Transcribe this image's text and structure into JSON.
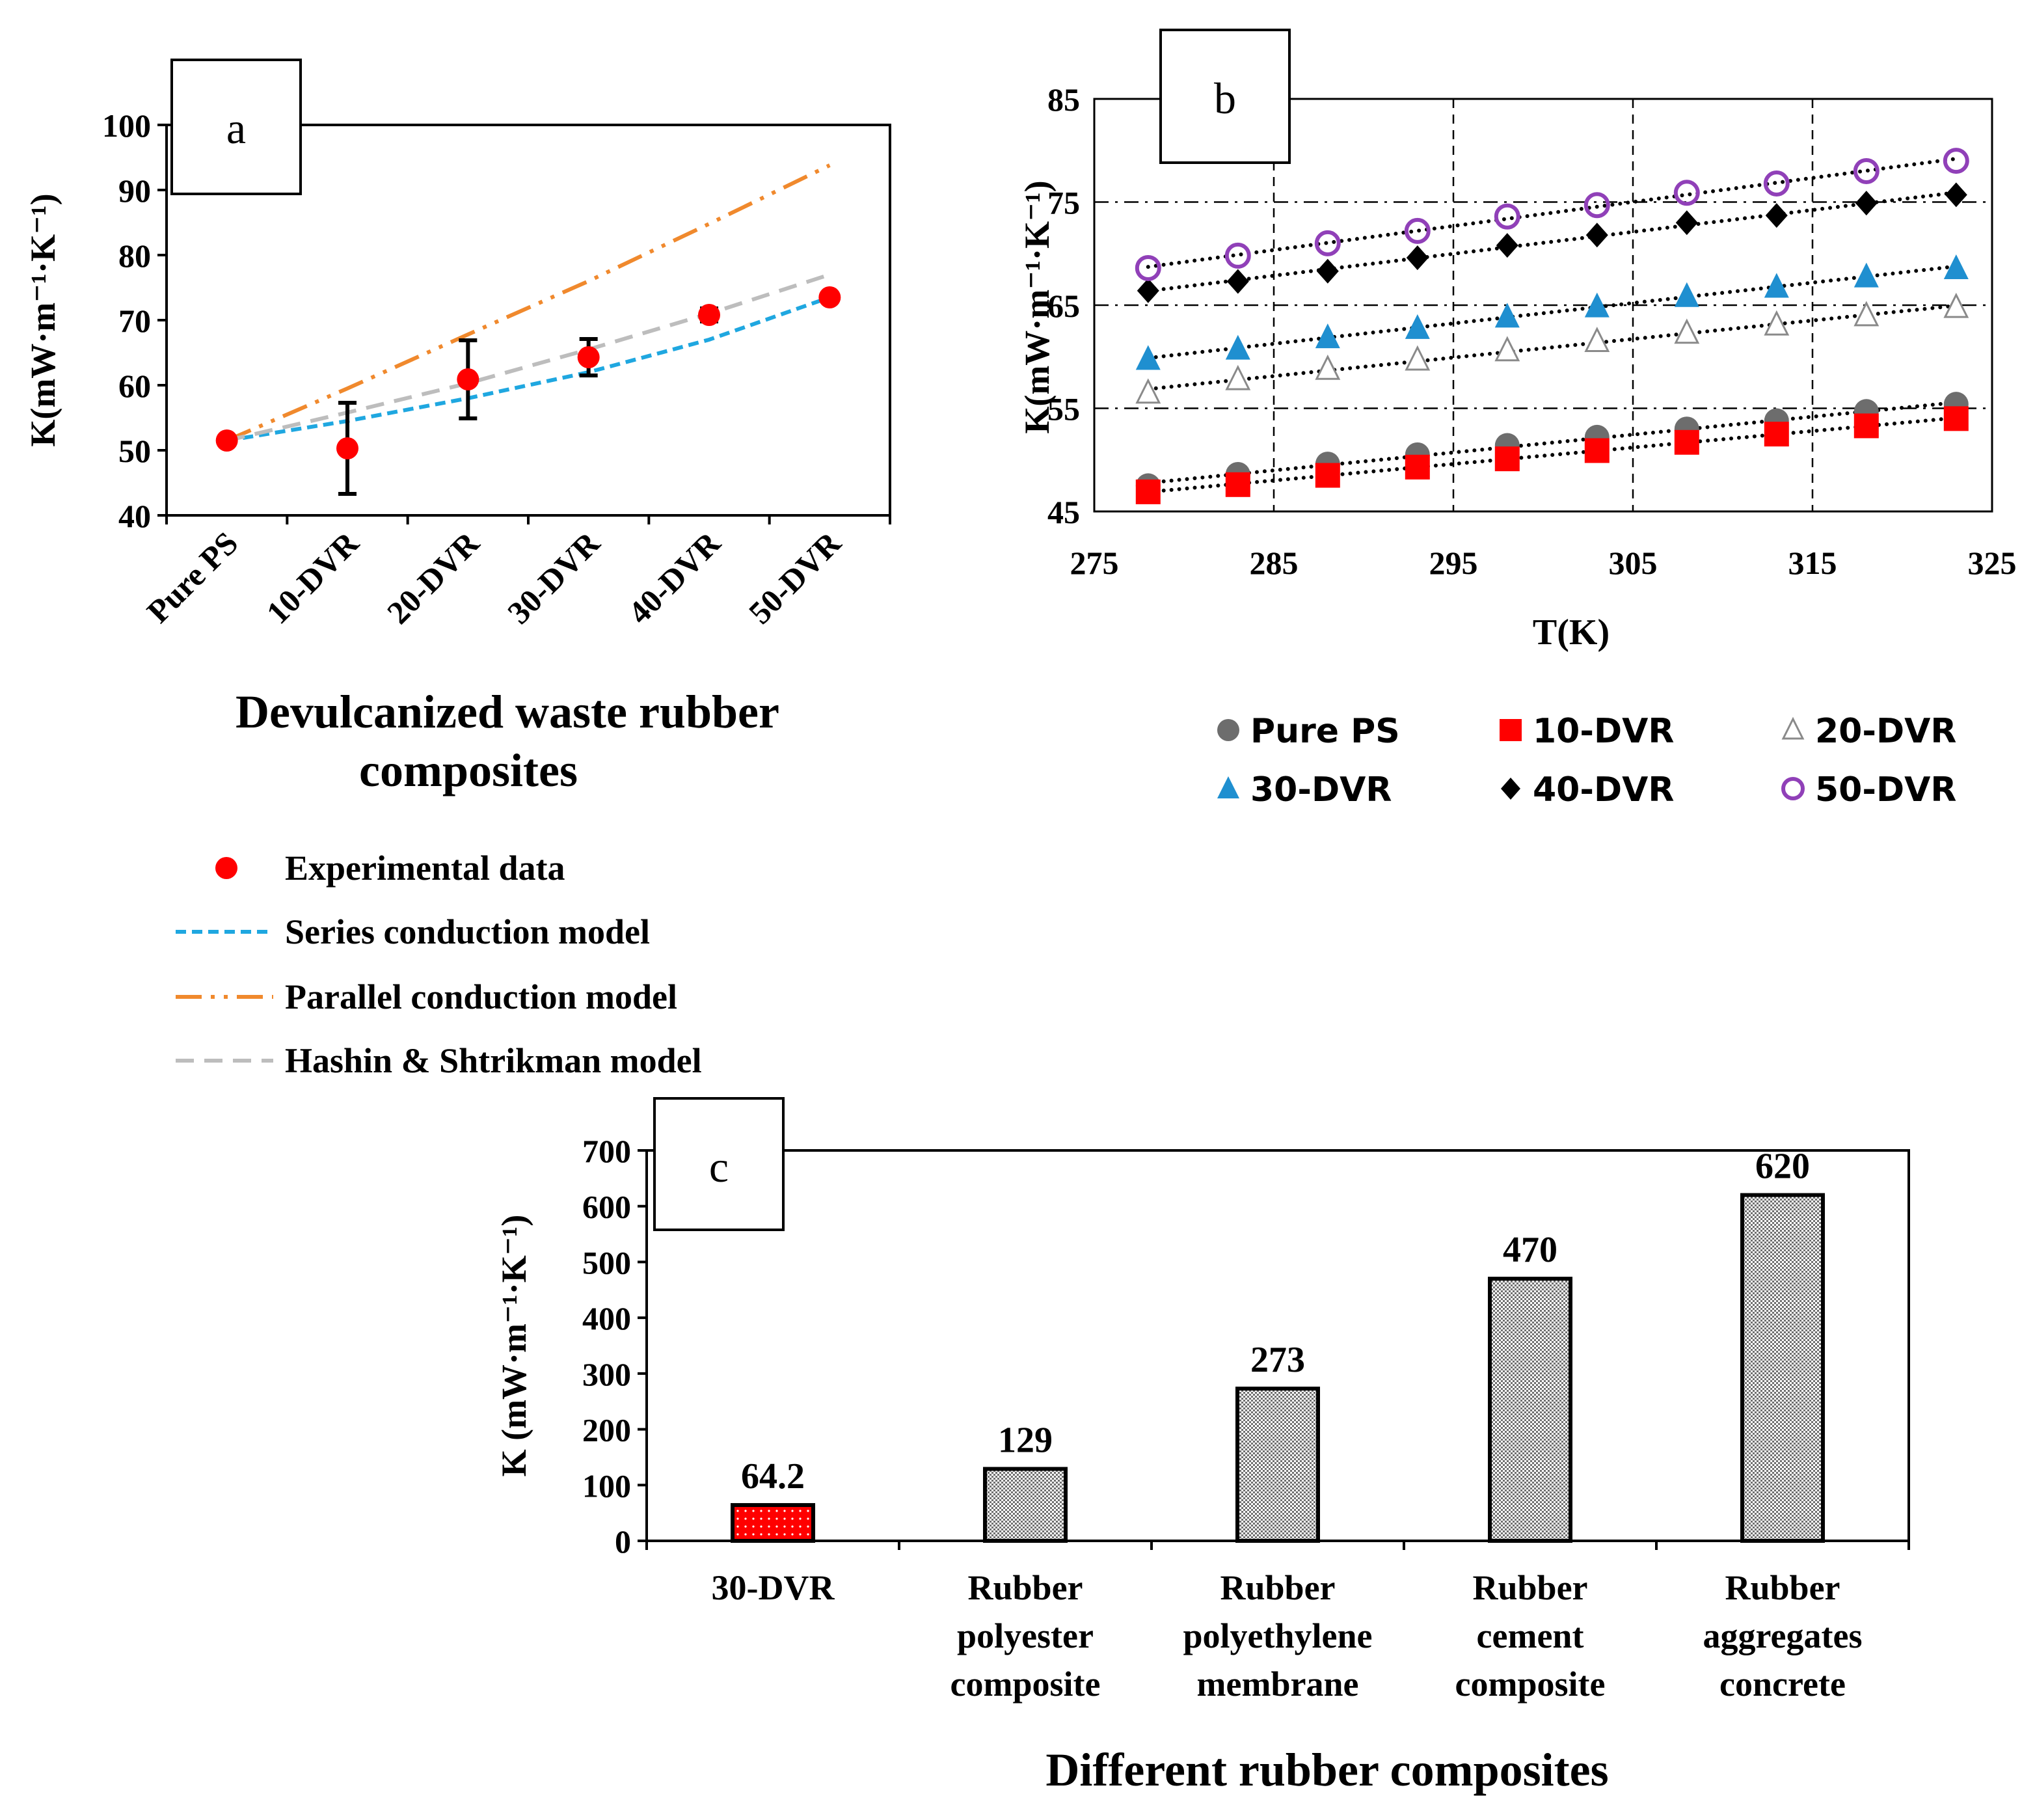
{
  "chart_data": [
    {
      "id": "a",
      "type": "scatter",
      "panel_label": "a",
      "title": "",
      "xlabel_lines": [
        "Devulcanized waste rubber",
        "composites"
      ],
      "ylabel": "K(mW·m⁻¹·K⁻¹)",
      "ylim": [
        40,
        100
      ],
      "yticks": [
        40,
        50,
        60,
        70,
        80,
        90,
        100
      ],
      "categories": [
        "Pure PS",
        "10-DVR",
        "20-DVR",
        "30-DVR",
        "40-DVR",
        "50-DVR"
      ],
      "experimental": {
        "name": "Experimental data",
        "color": "#ff0000",
        "values": [
          51.5,
          50.3,
          60.9,
          64.3,
          70.8,
          73.5
        ],
        "errors": [
          0.5,
          7.0,
          6.0,
          2.8,
          1.0,
          0.5
        ]
      },
      "models": [
        {
          "name": "Series conduction model",
          "color": "#1fa7e0",
          "dash": "dash",
          "values": [
            51.5,
            54.5,
            58.0,
            62.0,
            67.0,
            73.5
          ]
        },
        {
          "name": "Parallel conduction model",
          "color": "#f0892d",
          "dash": "dashdotdot",
          "values": [
            51.5,
            59.5,
            67.8,
            76.0,
            84.8,
            93.8
          ]
        },
        {
          "name": "Hashin & Shtrikman model",
          "color": "#bdbdbd",
          "dash": "longdash",
          "values": [
            51.5,
            55.8,
            60.3,
            65.5,
            71.0,
            77.0
          ]
        }
      ],
      "legend": [
        {
          "label": "Experimental data",
          "marker": "dot",
          "color": "#ff0000"
        },
        {
          "label": "Series conduction model",
          "marker": "dash",
          "color": "#1fa7e0"
        },
        {
          "label": "Parallel conduction model",
          "marker": "dashdotdot",
          "color": "#f0892d"
        },
        {
          "label": "Hashin & Shtrikman model",
          "marker": "longdash",
          "color": "#bdbdbd"
        }
      ]
    },
    {
      "id": "b",
      "type": "scatter",
      "panel_label": "b",
      "title": "",
      "xlabel": "T(K)",
      "ylabel": "K(mW·m⁻¹·K⁻¹)",
      "xlim": [
        275,
        325
      ],
      "ylim": [
        45,
        85
      ],
      "xticks": [
        275,
        285,
        295,
        305,
        315,
        325
      ],
      "yticks": [
        45,
        55,
        65,
        75,
        85
      ],
      "x": [
        278,
        283,
        288,
        293,
        298,
        303,
        308,
        313,
        318,
        323
      ],
      "series": [
        {
          "name": "Pure PS",
          "marker": "circle",
          "color": "#6d6d6d",
          "values": [
            47.5,
            48.6,
            49.6,
            50.5,
            51.4,
            52.2,
            53.0,
            53.8,
            54.7,
            55.4
          ]
        },
        {
          "name": "10-DVR",
          "marker": "square",
          "color": "#ff0000",
          "values": [
            46.9,
            47.6,
            48.5,
            49.3,
            50.1,
            50.9,
            51.7,
            52.5,
            53.3,
            54.0
          ]
        },
        {
          "name": "20-DVR",
          "marker": "triangle-open",
          "color": "#8a8a8a",
          "values": [
            56.5,
            57.8,
            58.8,
            59.7,
            60.6,
            61.5,
            62.3,
            63.1,
            64.0,
            64.8
          ]
        },
        {
          "name": "30-DVR",
          "marker": "triangle",
          "color": "#1f8fd0",
          "values": [
            59.8,
            60.8,
            61.9,
            62.8,
            63.9,
            64.9,
            65.9,
            66.8,
            67.8,
            68.6
          ]
        },
        {
          "name": "40-DVR",
          "marker": "diamond",
          "color": "#000000",
          "values": [
            66.4,
            67.3,
            68.3,
            69.6,
            70.8,
            71.8,
            73.0,
            73.7,
            74.9,
            75.7
          ]
        },
        {
          "name": "50-DVR",
          "marker": "circle-open",
          "color": "#9040b8",
          "values": [
            68.6,
            69.8,
            71.0,
            72.2,
            73.6,
            74.7,
            75.9,
            76.8,
            78.0,
            79.0
          ]
        }
      ]
    },
    {
      "id": "c",
      "type": "bar",
      "panel_label": "c",
      "title": "",
      "xlabel": "Different rubber composites",
      "ylabel": "K (mW·m⁻¹·K⁻¹)",
      "ylim": [
        0,
        700
      ],
      "yticks": [
        0,
        100,
        200,
        300,
        400,
        500,
        600,
        700
      ],
      "categories": [
        [
          "30-DVR"
        ],
        [
          "Rubber",
          "polyester",
          "composite"
        ],
        [
          "Rubber",
          "polyethylene",
          "membrane"
        ],
        [
          "Rubber",
          "cement",
          "composite"
        ],
        [
          "Rubber",
          "aggregates",
          "concrete"
        ]
      ],
      "values": [
        64.2,
        129,
        273,
        470,
        620
      ],
      "value_labels": [
        "64.2",
        "129",
        "273",
        "470",
        "620"
      ],
      "bar_colors": [
        "#ff0000",
        "#c8c8c8",
        "#c8c8c8",
        "#c8c8c8",
        "#c8c8c8"
      ]
    }
  ]
}
